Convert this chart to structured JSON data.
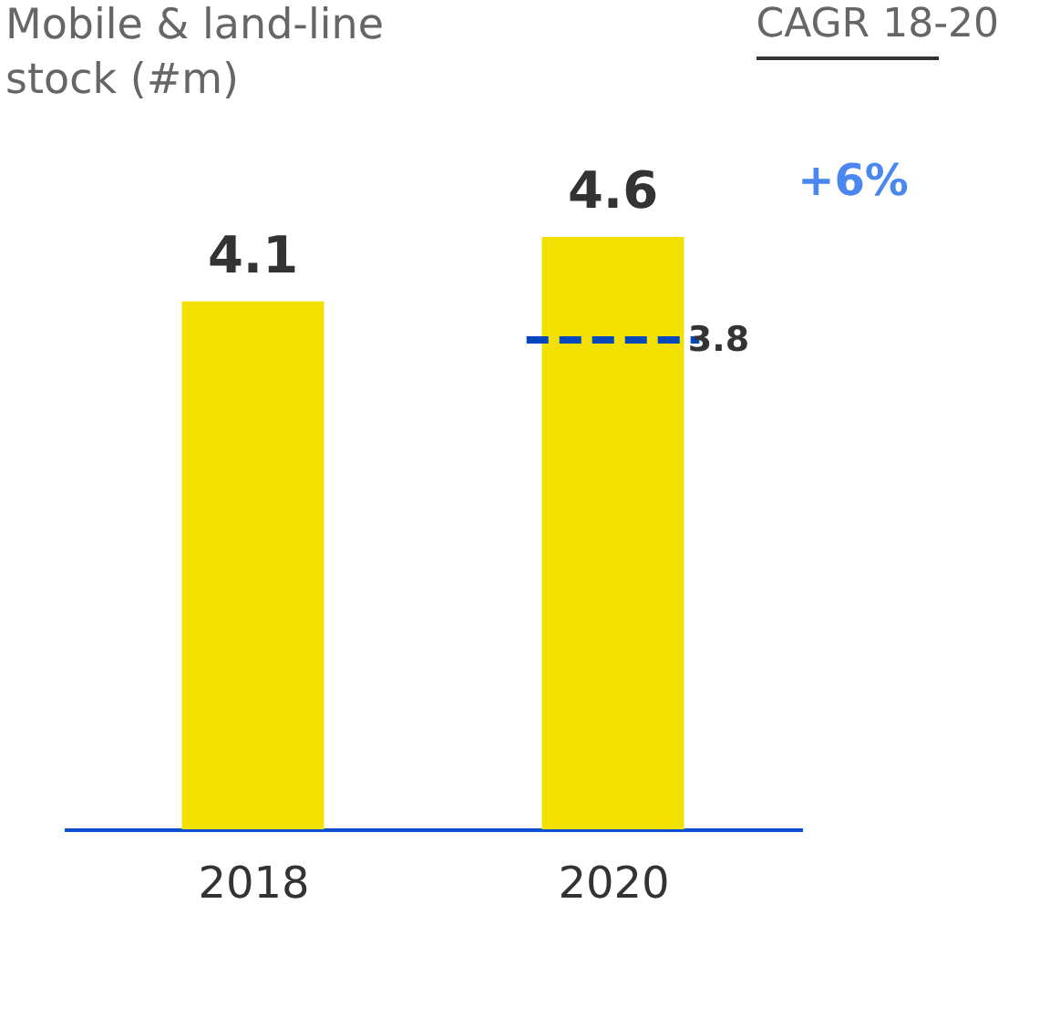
{
  "chart_data": {
    "type": "bar",
    "title": [
      "Mobile & land-line",
      "stock (#m)"
    ],
    "categories": [
      "2018",
      "2020"
    ],
    "series": [
      {
        "color": "#f2e100",
        "values": [
          4.1,
          4.6
        ]
      }
    ],
    "data_labels": true,
    "tick_labels": "x",
    "grid": false,
    "ref_lines": [
      {
        "axis": "y",
        "value": 3.8,
        "label": "3.8",
        "color": "#0047bb",
        "line_style": "dashed"
      }
    ],
    "annotations": [
      "CAGR 18-20",
      "+6%"
    ]
  }
}
